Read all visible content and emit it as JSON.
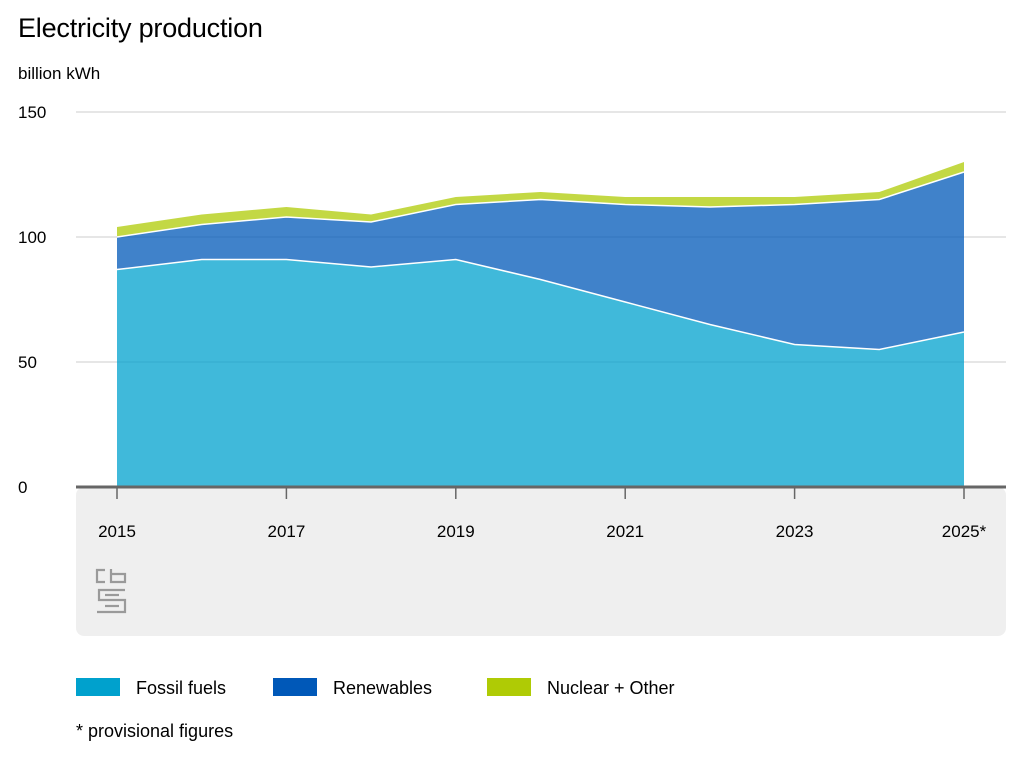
{
  "chart_data": {
    "type": "area",
    "stacked": true,
    "title": "Electricity production",
    "ylabel": "billion kWh",
    "xlabel": "",
    "x": [
      2015,
      2016,
      2017,
      2018,
      2019,
      2020,
      2021,
      2022,
      2023,
      2024,
      2025
    ],
    "x_tick_labels": [
      "2015",
      "2017",
      "2019",
      "2021",
      "2023",
      "2025*"
    ],
    "x_tick_values": [
      2015,
      2017,
      2019,
      2021,
      2023,
      2025
    ],
    "y_ticks": [
      0,
      50,
      100,
      150
    ],
    "ylim": [
      0,
      150
    ],
    "grid": true,
    "legend_position": "bottom",
    "footnote": "* provisional figures",
    "series": [
      {
        "name": "Fossil fuels",
        "color": "#00a1cd",
        "values": [
          87,
          91,
          91,
          88,
          91,
          83,
          74,
          65,
          57,
          55,
          62
        ]
      },
      {
        "name": "Renewables",
        "color": "#0058b8",
        "values": [
          13,
          14,
          17,
          18,
          22,
          32,
          39,
          47,
          56,
          60,
          64
        ]
      },
      {
        "name": "Nuclear + Other",
        "color": "#afcb05",
        "values": [
          4,
          4,
          4,
          3,
          3,
          3,
          3,
          4,
          3,
          3,
          4
        ]
      }
    ]
  },
  "branding": {
    "logo_icon": "cbs-logo-icon"
  }
}
